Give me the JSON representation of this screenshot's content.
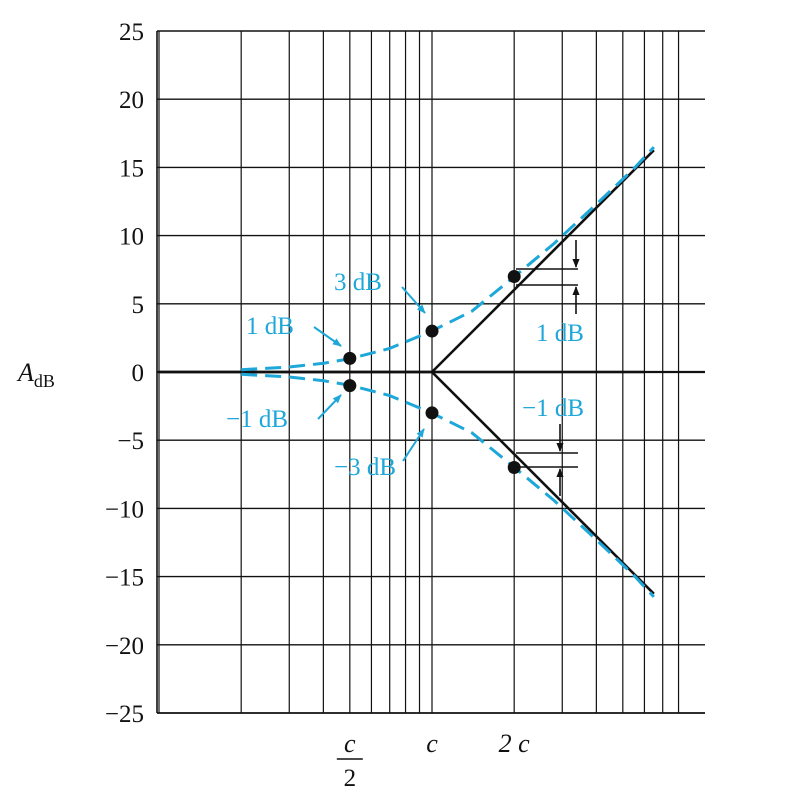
{
  "colors": {
    "asymptote": "#111111",
    "actual": "#1ea7d9",
    "annotation": "#1ea7d9",
    "grid": "#111111",
    "marker": "#111111"
  },
  "chart_data": {
    "type": "line",
    "scale": {
      "x": "log",
      "x_decades": 1.9,
      "x_range_c": [
        0.1,
        8.0
      ]
    },
    "ylim": [
      -25,
      25
    ],
    "yticks": [
      25,
      20,
      15,
      10,
      5,
      0,
      -5,
      -10,
      -15,
      -20,
      -25
    ],
    "ylabel": {
      "main": "A",
      "sub": "dB"
    },
    "xtick_labels": [
      {
        "x": 0.5,
        "num": "c",
        "den": "2"
      },
      {
        "x": 1,
        "text": "c"
      },
      {
        "x": 2,
        "text": "2 c"
      }
    ],
    "grid": true,
    "series": [
      {
        "key": "pos_asymptote",
        "style": "solid",
        "x": [
          0.1,
          1,
          6.5
        ],
        "y": [
          0,
          0,
          16.26
        ]
      },
      {
        "key": "neg_asymptote",
        "style": "solid",
        "x": [
          1,
          6.5
        ],
        "y": [
          0,
          -16.26
        ]
      },
      {
        "key": "zero_line",
        "style": "solid",
        "x": [
          0.1,
          6.0
        ],
        "y": [
          0,
          0
        ]
      },
      {
        "key": "pos_actual",
        "style": "dashed",
        "x": [
          0.2,
          0.3,
          0.4,
          0.5,
          0.7,
          1,
          1.4,
          2,
          2.8,
          4,
          5.5,
          6.5
        ],
        "y": [
          0.17,
          0.37,
          0.64,
          0.97,
          1.73,
          3.01,
          4.46,
          6.99,
          9.42,
          12.3,
          14.93,
          16.49
        ]
      },
      {
        "key": "neg_actual",
        "style": "dashed",
        "x": [
          0.2,
          0.3,
          0.4,
          0.5,
          0.7,
          1,
          1.4,
          2,
          2.8,
          4,
          5.5,
          6.5
        ],
        "y": [
          -0.17,
          -0.37,
          -0.64,
          -0.97,
          -1.73,
          -3.01,
          -4.46,
          -6.99,
          -9.42,
          -12.3,
          -14.93,
          -16.49
        ]
      }
    ],
    "points": [
      {
        "x": 0.5,
        "y": 1
      },
      {
        "x": 0.5,
        "y": -1
      },
      {
        "x": 1,
        "y": 3
      },
      {
        "x": 1,
        "y": -3
      },
      {
        "x": 2,
        "y": 7
      },
      {
        "x": 2,
        "y": -7
      }
    ],
    "annotations": {
      "one_db": "1 dB",
      "three_db": "3 dB",
      "neg_one_db": "−1 dB",
      "neg_three_db": "−3 dB",
      "one_db_right": "1 dB",
      "neg_one_db_right": "−1 dB"
    }
  }
}
